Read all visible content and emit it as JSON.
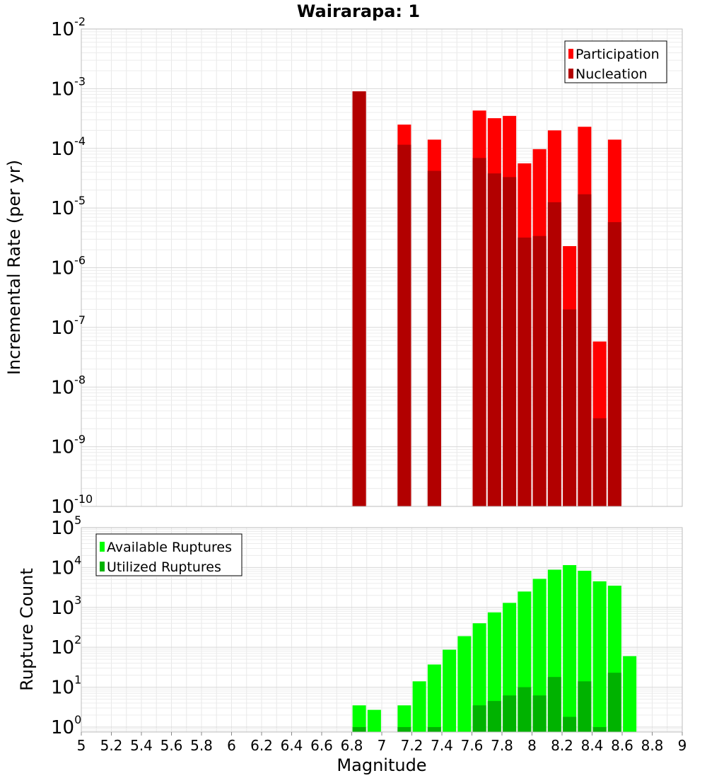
{
  "chart_data": [
    {
      "type": "bar",
      "title": "Wairarapa: 1",
      "xlabel": "",
      "ylabel": "Incremental Rate (per yr)",
      "y_scale": "log",
      "xlim": [
        5,
        9
      ],
      "ylim": [
        1e-10,
        0.01
      ],
      "yticks": [
        "10^-10",
        "10^-9",
        "10^-8",
        "10^-7",
        "10^-6",
        "10^-5",
        "10^-4",
        "10^-3",
        "10^-2"
      ],
      "legend": "top-right",
      "grid": true,
      "x": [
        6.85,
        7.15,
        7.35,
        7.65,
        7.75,
        7.85,
        7.95,
        8.05,
        8.15,
        8.25,
        8.35,
        8.45,
        8.55
      ],
      "series": [
        {
          "name": "Participation",
          "color": "#ff0000",
          "values": [
            0.0009,
            0.00025,
            0.00014,
            0.00043,
            0.00032,
            0.00035,
            5.6e-05,
            9.7e-05,
            0.0002,
            2.3e-06,
            0.00023,
            5.8e-08,
            0.00014
          ]
        },
        {
          "name": "Nucleation",
          "color": "#b20000",
          "values": [
            0.0009,
            0.000115,
            4.2e-05,
            6.9e-05,
            3.8e-05,
            3.3e-05,
            3.2e-06,
            3.4e-06,
            1.25e-05,
            2e-07,
            1.7e-05,
            3e-09,
            5.8e-06
          ]
        }
      ]
    },
    {
      "type": "bar",
      "title": "",
      "xlabel": "Magnitude",
      "ylabel": "Rupture Count",
      "y_scale": "log",
      "xlim": [
        5,
        9
      ],
      "ylim": [
        0.75,
        100000.0
      ],
      "yticks": [
        "10^0",
        "10^1",
        "10^2",
        "10^3",
        "10^4",
        "10^5"
      ],
      "xticks": [
        "5",
        "5.2",
        "5.4",
        "5.6",
        "5.8",
        "6",
        "6.2",
        "6.4",
        "6.6",
        "6.8",
        "7",
        "7.2",
        "7.4",
        "7.6",
        "7.8",
        "8",
        "8.2",
        "8.4",
        "8.6",
        "8.8",
        "9"
      ],
      "legend": "top-left",
      "grid": true,
      "x": [
        6.85,
        6.95,
        7.15,
        7.25,
        7.35,
        7.45,
        7.55,
        7.65,
        7.75,
        7.85,
        7.95,
        8.05,
        8.15,
        8.25,
        8.35,
        8.45,
        8.55,
        8.65
      ],
      "series": [
        {
          "name": "Available Ruptures",
          "color": "#00ff00",
          "values": [
            3.5,
            2.7,
            3.5,
            14,
            37,
            87,
            190,
            400,
            750,
            1300,
            2500,
            5200,
            8800,
            11500,
            8300,
            4500,
            3500,
            60
          ]
        },
        {
          "name": "Utilized Ruptures",
          "color": "#00b200",
          "values": [
            1,
            0,
            1,
            0,
            1,
            0,
            0,
            3.5,
            4.5,
            6.2,
            10,
            6.2,
            18,
            1.8,
            14,
            1,
            23,
            0
          ]
        }
      ]
    }
  ]
}
